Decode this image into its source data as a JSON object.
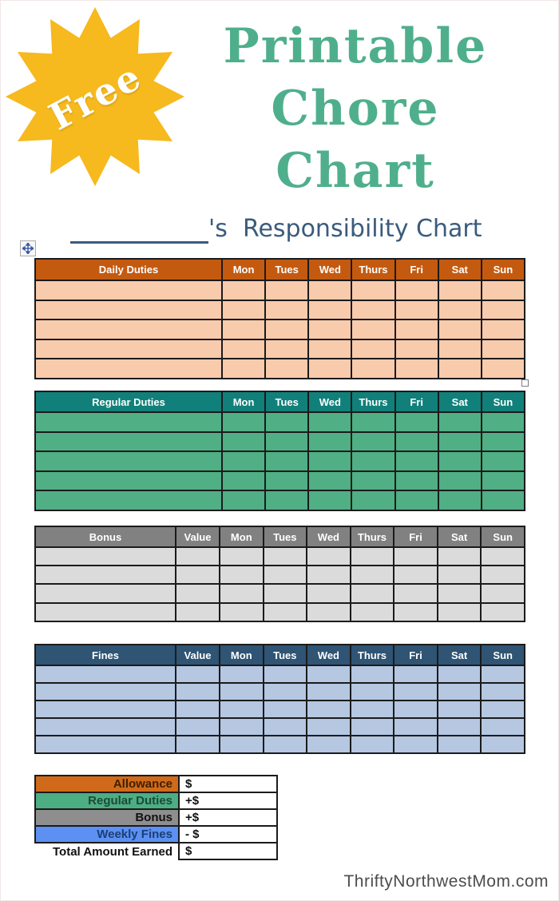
{
  "page": {
    "badge_text": "Free",
    "title_lines": [
      "Printable",
      "Chore",
      "Chart"
    ],
    "heading_suffix": "'s  Responsibility Chart",
    "watermark": "ThriftyNorthwestMom.com"
  },
  "colors": {
    "badge_yellow": "#f6b91e",
    "title_green": "#4faf8c",
    "heading_blue": "#3a5b7d",
    "cell_border": "#1b1b1b"
  },
  "days": [
    "Mon",
    "Tues",
    "Wed",
    "Thurs",
    "Fri",
    "Sat",
    "Sun"
  ],
  "tables": [
    {
      "id": "daily",
      "title": "Daily Duties",
      "value_label": null,
      "rows": 5,
      "header_bg": "#c45a10",
      "body_bg": "#f8cbad"
    },
    {
      "id": "regular",
      "title": "Regular Duties",
      "value_label": null,
      "rows": 5,
      "header_bg": "#11807a",
      "body_bg": "#50af85"
    },
    {
      "id": "bonus",
      "title": "Bonus",
      "value_label": "Value",
      "rows": 4,
      "header_bg": "#818181",
      "body_bg": "#dbdbdb"
    },
    {
      "id": "fines",
      "title": "Fines",
      "value_label": "Value",
      "rows": 5,
      "header_bg": "#2f5474",
      "body_bg": "#b5c7e1"
    }
  ],
  "summary": {
    "rows": [
      {
        "label": "Allowance",
        "value": "$",
        "label_bg": "#d06a1a",
        "label_color": "#3f2000",
        "boxed": true
      },
      {
        "label": "Regular Duties",
        "value": "+$",
        "label_bg": "#4cae82",
        "label_color": "#1c4a38",
        "boxed": true
      },
      {
        "label": "Bonus",
        "value": "+$",
        "label_bg": "#8e8e8e",
        "label_color": "#111111",
        "boxed": true
      },
      {
        "label": "Weekly Fines",
        "value": "- $",
        "label_bg": "#5c90f2",
        "label_color": "#1b3f75",
        "boxed": true
      },
      {
        "label": "Total Amount Earned",
        "value": "$",
        "label_bg": "#ffffff",
        "label_color": "#111111",
        "boxed": false
      }
    ]
  }
}
